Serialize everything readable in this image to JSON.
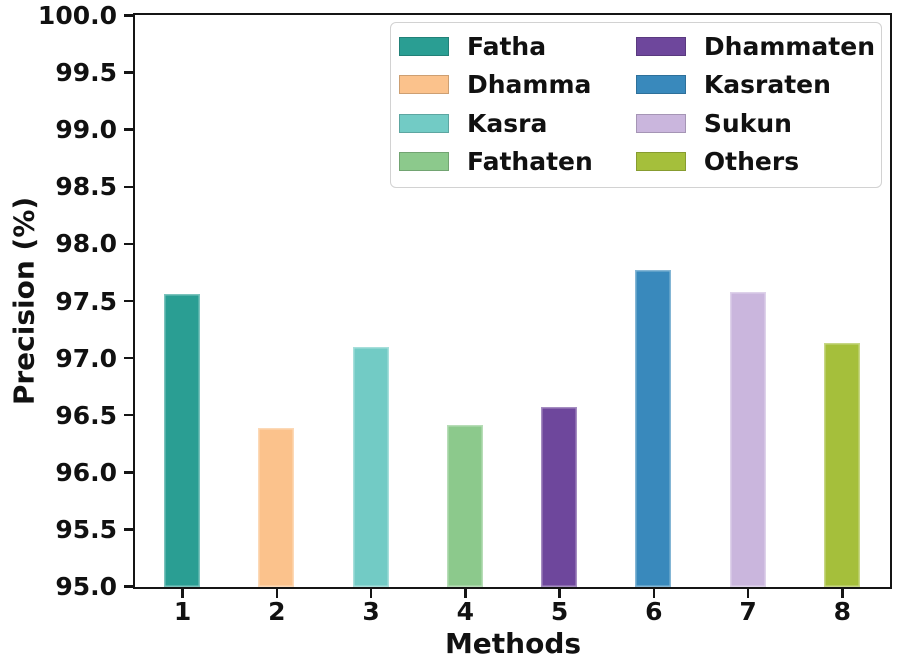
{
  "chart_data": {
    "type": "bar",
    "title": "",
    "xlabel": "Methods",
    "ylabel": "Precision (%)",
    "categories": [
      "1",
      "2",
      "3",
      "4",
      "5",
      "6",
      "7",
      "8"
    ],
    "values": [
      97.57,
      96.39,
      97.1,
      96.42,
      96.58,
      97.78,
      97.58,
      97.14
    ],
    "bars": [
      {
        "x": 1,
        "label": "Fatha",
        "value": 97.57,
        "color": "#2a9e93"
      },
      {
        "x": 2,
        "label": "Dhamma",
        "value": 96.39,
        "color": "#fbc28c"
      },
      {
        "x": 3,
        "label": "Kasra",
        "value": 97.1,
        "color": "#72cbc5"
      },
      {
        "x": 4,
        "label": "Fathaten",
        "value": 96.42,
        "color": "#8cc98c"
      },
      {
        "x": 5,
        "label": "Dhammaten",
        "value": 96.58,
        "color": "#6e479c"
      },
      {
        "x": 6,
        "label": "Kasraten",
        "value": 97.78,
        "color": "#3989bc"
      },
      {
        "x": 7,
        "label": "Sukun",
        "value": 97.58,
        "color": "#cab6dd"
      },
      {
        "x": 8,
        "label": "Others",
        "value": 97.14,
        "color": "#a5bf3b"
      }
    ],
    "legend": {
      "position": "upper right",
      "columns": 2,
      "entries": [
        "Fatha",
        "Dhamma",
        "Kasra",
        "Fathaten",
        "Dhammaten",
        "Kasraten",
        "Sukun",
        "Others"
      ]
    },
    "ylim": [
      95.0,
      100.0
    ],
    "ytick_step": 0.5,
    "ytick_labels": [
      "95.0",
      "95.5",
      "96.0",
      "96.5",
      "97.0",
      "97.5",
      "98.0",
      "98.5",
      "99.0",
      "99.5",
      "100.0"
    ],
    "xlim": [
      0.5,
      8.5
    ],
    "bar_width": 0.38,
    "grid": false,
    "spines": "all",
    "tick_direction": "out"
  }
}
